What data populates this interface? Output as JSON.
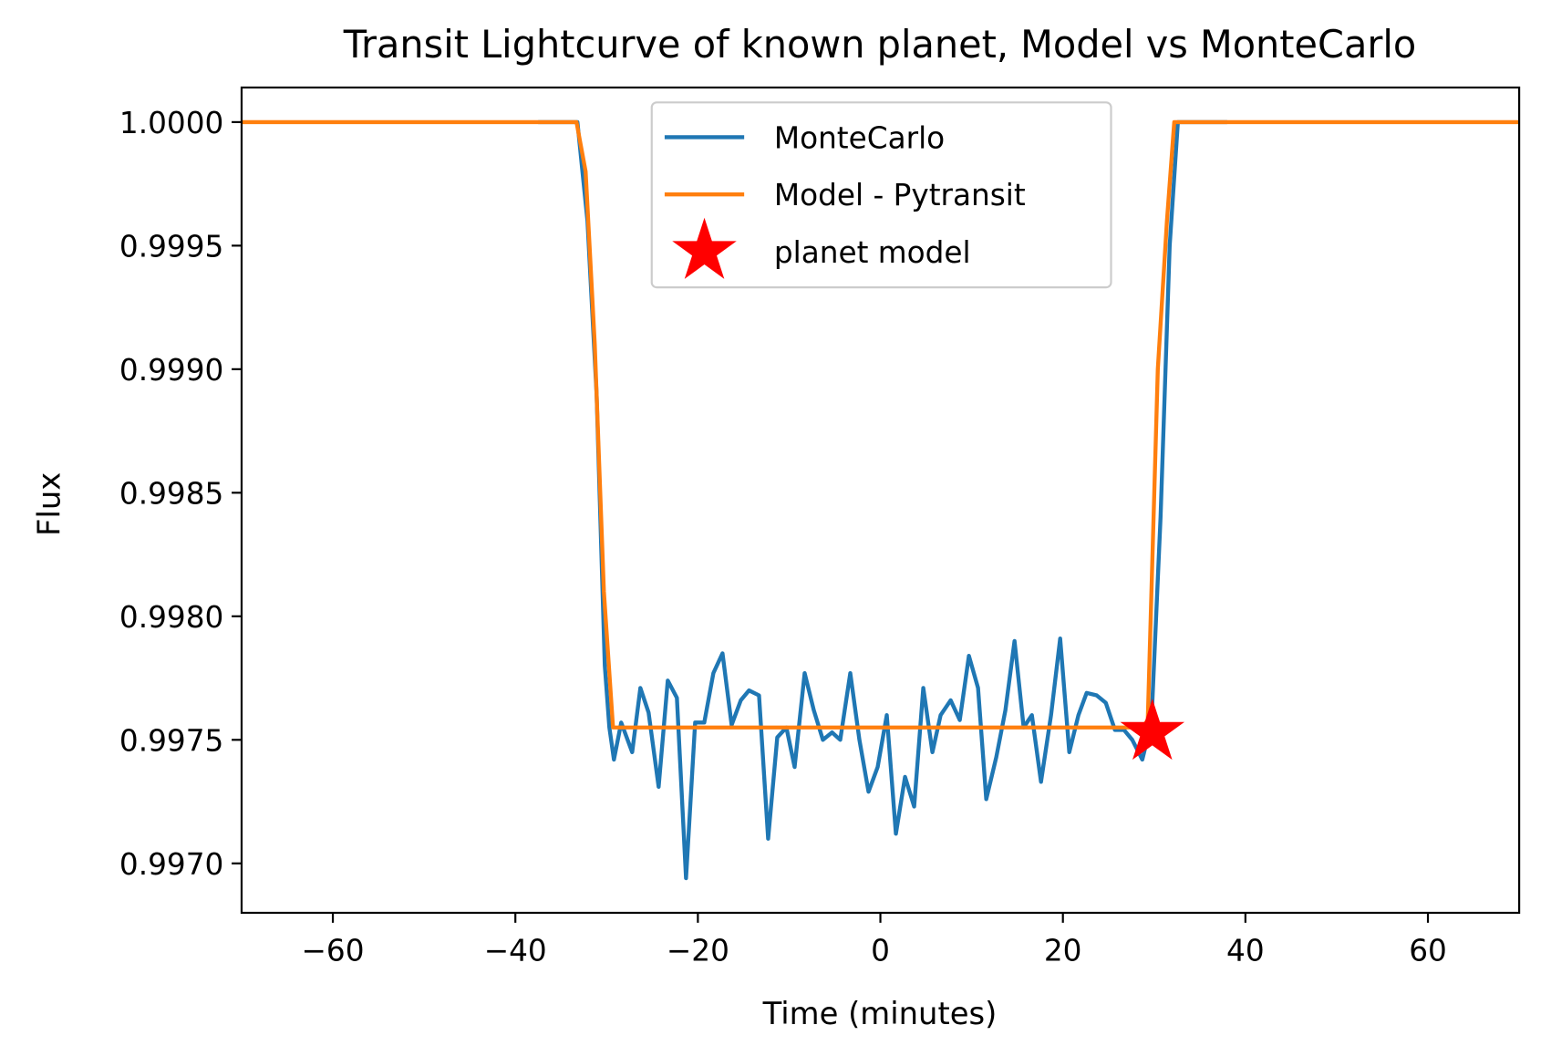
{
  "chart_data": {
    "type": "line",
    "title": "Transit Lightcurve of known planet, Model vs MonteCarlo",
    "x_label": "Time (minutes)",
    "y_label": "Flux",
    "xlim": [
      -70,
      70
    ],
    "ylim": [
      0.9968,
      1.00014
    ],
    "xticks": [
      {
        "value": -60,
        "label": "−60"
      },
      {
        "value": -40,
        "label": "−40"
      },
      {
        "value": -20,
        "label": "−20"
      },
      0,
      20,
      40,
      60
    ],
    "yticks": [
      {
        "value": 0.997,
        "label": "0.9970"
      },
      {
        "value": 0.9975,
        "label": "0.9975"
      },
      {
        "value": 0.998,
        "label": "0.9980"
      },
      {
        "value": 0.9985,
        "label": "0.9985"
      },
      {
        "value": 0.999,
        "label": "0.9990"
      },
      {
        "value": 0.9995,
        "label": "0.9995"
      },
      {
        "value": 1,
        "label": "1.0000"
      }
    ],
    "legend": "upper center",
    "series": [
      {
        "name": "MonteCarlo",
        "color": "#1f77b4",
        "kind": "line",
        "x": [
          -37.5,
          -33.2,
          -32.1,
          -31.1,
          -30.2,
          -29.7,
          -29.2,
          -28.4,
          -27.2,
          -26.3,
          -25.4,
          -24.3,
          -23.3,
          -22.3,
          -21.3,
          -20.3,
          -19.3,
          -18.3,
          -17.3,
          -16.3,
          -15.3,
          -14.4,
          -13.3,
          -12.3,
          -11.3,
          -10.3,
          -9.4,
          -8.3,
          -7.3,
          -6.3,
          -5.3,
          -4.4,
          -3.3,
          -2.3,
          -1.3,
          -0.3,
          0.7,
          1.7,
          2.7,
          3.7,
          4.7,
          5.7,
          6.6,
          7.7,
          8.7,
          9.7,
          10.7,
          11.6,
          12.7,
          13.7,
          14.7,
          15.7,
          16.6,
          17.6,
          18.7,
          19.7,
          20.7,
          21.7,
          22.6,
          23.7,
          24.7,
          25.7,
          26.7,
          27.6,
          28.7,
          29.7,
          30.7,
          31.7,
          32.6,
          38
        ],
        "values": [
          1.0,
          1.0,
          0.9996,
          0.9989,
          0.9978,
          0.99755,
          0.99742,
          0.99757,
          0.99745,
          0.99771,
          0.99761,
          0.99731,
          0.99774,
          0.99767,
          0.99694,
          0.99757,
          0.99757,
          0.99777,
          0.99785,
          0.99756,
          0.99766,
          0.9977,
          0.99768,
          0.9971,
          0.99751,
          0.99755,
          0.99739,
          0.99777,
          0.99762,
          0.9975,
          0.99753,
          0.9975,
          0.99777,
          0.9975,
          0.99729,
          0.99739,
          0.9976,
          0.99712,
          0.99735,
          0.99723,
          0.99771,
          0.99745,
          0.9976,
          0.99766,
          0.99758,
          0.99784,
          0.99771,
          0.99726,
          0.99743,
          0.99762,
          0.9979,
          0.99755,
          0.9976,
          0.99733,
          0.9976,
          0.99791,
          0.99745,
          0.9976,
          0.99769,
          0.99768,
          0.99765,
          0.99754,
          0.99754,
          0.9975,
          0.99742,
          0.99757,
          0.9984,
          0.9995,
          1.0,
          1.0
        ]
      },
      {
        "name": "Model - Pytransit",
        "color": "#ff7f0e",
        "kind": "line",
        "x": [
          -70,
          -33.3,
          -32.3,
          -31.3,
          -30.3,
          -29.3,
          28.7,
          29.3,
          30.4,
          31.4,
          32.2,
          70
        ],
        "values": [
          1.0,
          1.0,
          0.9998,
          0.9991,
          0.9981,
          0.99755,
          0.99755,
          0.99758,
          0.999,
          0.9996,
          1.0,
          1.0
        ]
      },
      {
        "name": "planet model",
        "color": "#ff0000",
        "kind": "star",
        "x": [
          29.8
        ],
        "values": [
          0.99753
        ]
      }
    ]
  }
}
